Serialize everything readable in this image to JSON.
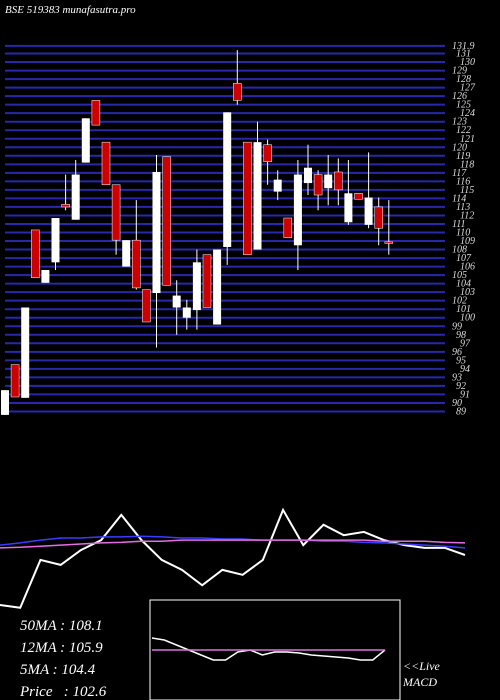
{
  "chart_data": [
    {
      "type": "candlestick",
      "title": "BSE 519383 munafasutra.pro",
      "open": [
        88.6,
        94.5,
        90.6,
        110.3,
        104.1,
        106.5,
        113.3,
        111.5,
        118.2,
        125.5,
        120.6,
        115.6,
        106.0,
        109.1,
        103.3,
        102.9,
        118.9,
        101.2,
        100.0,
        100.9,
        107.4,
        99.2,
        108.3,
        127.5,
        120.6,
        108.0,
        120.3,
        114.8,
        111.7,
        108.5,
        115.8,
        116.8,
        115.2,
        117.1,
        111.2,
        114.6,
        110.9,
        113.0,
        108.9
      ],
      "high": [
        91.5,
        94.5,
        101.2,
        110.3,
        105.6,
        111.7,
        116.8,
        118.5,
        123.4,
        125.5,
        120.6,
        115.6,
        109.1,
        113.8,
        103.3,
        119.1,
        118.9,
        104.4,
        102.1,
        108.0,
        107.4,
        108.0,
        124.1,
        131.4,
        120.6,
        123.0,
        120.9,
        117.3,
        111.7,
        118.5,
        120.3,
        117.3,
        119.1,
        118.7,
        118.5,
        114.6,
        119.4,
        114.1,
        113.8
      ],
      "low": [
        88.6,
        90.7,
        90.6,
        104.7,
        104.1,
        105.6,
        112.6,
        111.5,
        118.2,
        122.6,
        115.6,
        107.4,
        106.0,
        103.3,
        99.5,
        96.5,
        103.8,
        98.0,
        98.6,
        98.6,
        101.2,
        99.2,
        106.2,
        125.0,
        107.4,
        108.0,
        115.6,
        113.8,
        109.4,
        105.6,
        114.4,
        112.6,
        113.2,
        113.2,
        110.9,
        113.9,
        110.5,
        108.5,
        107.4
      ],
      "close": [
        91.5,
        90.7,
        101.2,
        104.7,
        105.6,
        111.7,
        113.0,
        116.8,
        123.4,
        122.6,
        115.6,
        109.1,
        109.1,
        103.5,
        99.5,
        117.1,
        103.8,
        102.6,
        101.2,
        106.5,
        101.2,
        108.0,
        124.1,
        125.5,
        107.4,
        120.6,
        118.3,
        116.2,
        109.4,
        116.8,
        117.6,
        114.4,
        116.8,
        115.0,
        114.6,
        113.9,
        114.1,
        110.5,
        108.8
      ],
      "ylim": [
        88,
        132
      ],
      "yticks": [
        131.9,
        131,
        130,
        129,
        128,
        127,
        126,
        125,
        124,
        123,
        122,
        121,
        120,
        119,
        118,
        117,
        116,
        115,
        114,
        113,
        112,
        111,
        110,
        109,
        108,
        107,
        106,
        105,
        104,
        103,
        102,
        101,
        100,
        99,
        98,
        97,
        96,
        95,
        94,
        93,
        92,
        91,
        90,
        89
      ],
      "grid": true,
      "grid_color": "#2828a8",
      "up_color": "#ffffff",
      "down_color": "#cc0000"
    },
    {
      "type": "line",
      "ylim": [
        95,
        115
      ],
      "series": [
        {
          "color": "#ffffff",
          "values": [
            95.9,
            95.4,
            104.1,
            103.2,
            105.9,
            107.7,
            112.3,
            107.7,
            104.1,
            102.3,
            99.5,
            102.3,
            101.4,
            104.1,
            113.2,
            106.8,
            110.5,
            108.6,
            109.2,
            107.7,
            106.8,
            106.3,
            106.3,
            105.0
          ]
        },
        {
          "color": "#3c3cff",
          "values": [
            106.8,
            107.2,
            107.7,
            108.1,
            108.1,
            108.3,
            108.3,
            108.4,
            108.3,
            108.1,
            108.1,
            107.9,
            107.9,
            107.7,
            107.7,
            107.7,
            107.5,
            107.5,
            107.3,
            107.2,
            107.0,
            106.8,
            106.6,
            106.3
          ]
        },
        {
          "color": "#e070e0",
          "values": [
            106.3,
            106.4,
            106.6,
            106.8,
            107.0,
            107.2,
            107.3,
            107.5,
            107.5,
            107.7,
            107.7,
            107.7,
            107.7,
            107.7,
            107.7,
            107.7,
            107.7,
            107.7,
            107.7,
            107.5,
            107.5,
            107.5,
            107.3,
            107.2
          ]
        }
      ]
    },
    {
      "type": "macd",
      "title": "MACD",
      "ylim": [
        -1,
        1
      ],
      "series": [
        {
          "color": "#ffffff",
          "values": [
            0.24,
            0.2,
            0.1,
            0,
            -0.1,
            -0.2,
            -0.2,
            -0.04,
            0,
            -0.1,
            -0.04,
            -0.04,
            -0.06,
            -0.1,
            -0.12,
            -0.14,
            -0.16,
            -0.2,
            -0.2,
            0
          ]
        },
        {
          "color": "#e070e0",
          "values": [
            0,
            0,
            0,
            0,
            0,
            0,
            0,
            0,
            0,
            0,
            0,
            0,
            0,
            0,
            0,
            0,
            0,
            0,
            0,
            0
          ]
        }
      ]
    }
  ],
  "stats": [
    "50MA : 108.1",
    "12MA : 105.9",
    "5MA : 104.4",
    "Price   : 102.6"
  ],
  "live": "<<Live"
}
